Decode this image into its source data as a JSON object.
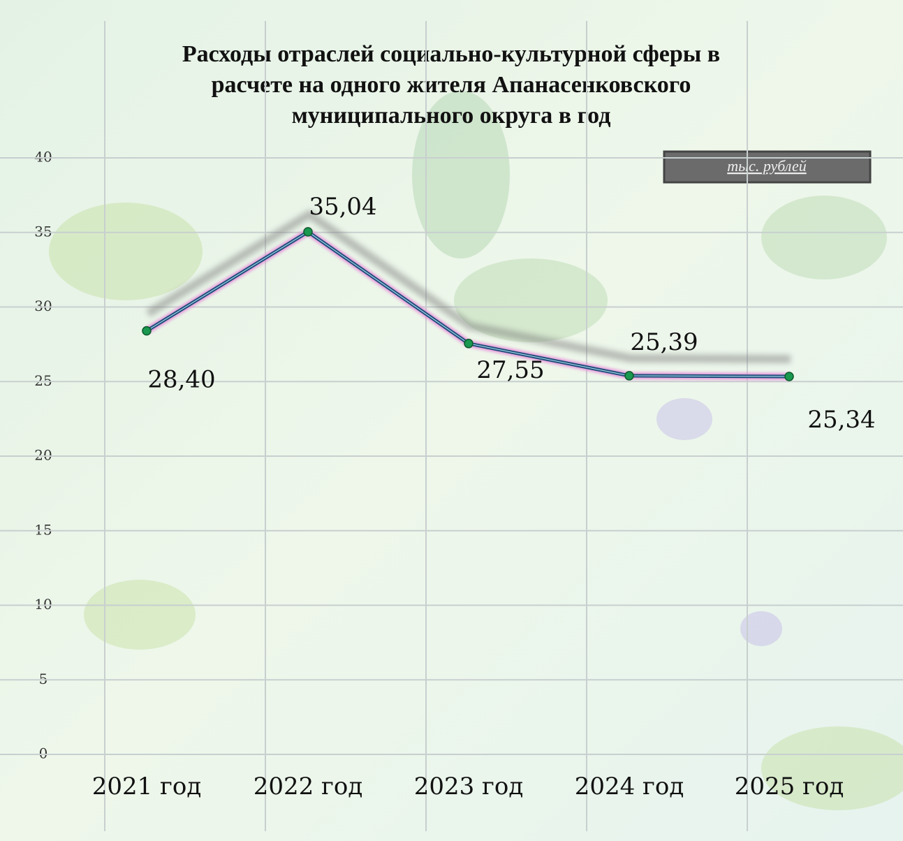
{
  "chart_data": {
    "type": "line",
    "title": [
      "Расходы отраслей социально-культурной сферы в",
      "расчете на одного жителя Апанасенковского",
      "муниципального округа в год"
    ],
    "unit_label": "тыс. рублей",
    "categories": [
      "2021 год",
      "2022 год",
      "2023 год",
      "2024 год",
      "2025 год"
    ],
    "series": [
      {
        "color": "#1f4e79",
        "marker_color": "#1a9850",
        "values": [
          28.4,
          35.04,
          27.55,
          25.39,
          25.34
        ],
        "value_labels": [
          "28,40",
          "35,04",
          "27,55",
          "25,39",
          "25,34"
        ]
      }
    ],
    "ylim": [
      0,
      40
    ],
    "yticks": [
      0,
      5,
      10,
      15,
      20,
      25,
      30,
      35,
      40
    ],
    "grid": true
  }
}
